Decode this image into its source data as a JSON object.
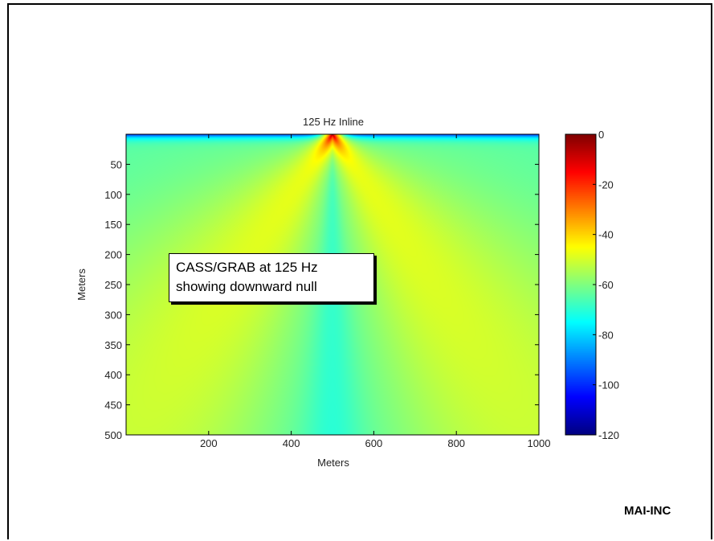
{
  "chart_data": {
    "type": "heatmap",
    "title": "125 Hz  Inline",
    "xlabel": "Meters",
    "ylabel": "Meters",
    "xlim": [
      0,
      1000
    ],
    "ylim": [
      500,
      0
    ],
    "x_ticks": [
      200,
      400,
      600,
      800,
      1000
    ],
    "y_ticks": [
      50,
      100,
      150,
      200,
      250,
      300,
      350,
      400,
      450,
      500
    ],
    "colorbar": {
      "range": [
        -120,
        0
      ],
      "ticks": [
        0,
        -20,
        -40,
        -60,
        -80,
        -100,
        -120
      ],
      "colormap": "jet"
    },
    "annotation": [
      "CASS/GRAB at 125 Hz",
      "showing downward null"
    ],
    "field_summary": {
      "source_x": 500,
      "source_depth": 0,
      "peak_level": 0,
      "lobe_level": -48,
      "downward_null_level": -68,
      "background_level": -62,
      "surface_level": -100
    }
  },
  "footer": {
    "logo": "MAI-INC"
  }
}
